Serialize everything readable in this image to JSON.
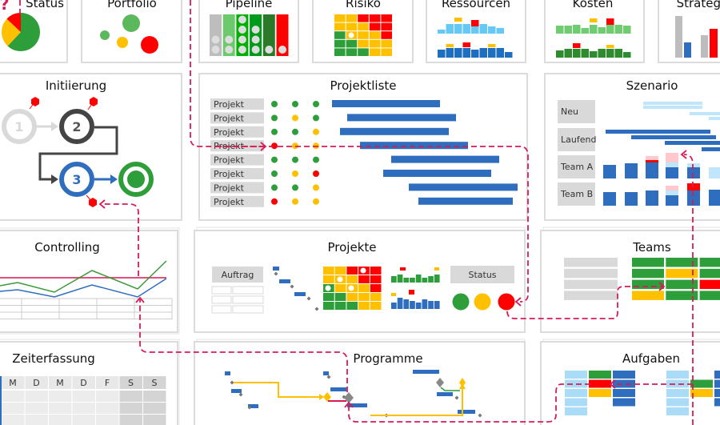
{
  "colors": {
    "green": "#2e9e3a",
    "light_green": "#6cc96c",
    "yellow": "#ffc000",
    "red": "#ff0000",
    "blue": "#2f6dbf",
    "light_blue": "#9fd8f7",
    "gray": "#d9d9d9",
    "connector": "#d81b55"
  },
  "tiles": {
    "status": {
      "title": "Status",
      "pie": [
        {
          "color": "green",
          "share": 62
        },
        {
          "color": "yellow",
          "share": 25
        },
        {
          "color": "red",
          "share": 13
        }
      ],
      "icon": "question-mark-icon"
    },
    "portfolio": {
      "title": "Portfolio"
    },
    "pipeline": {
      "title": "Pipeline"
    },
    "risiko": {
      "title": "Risiko"
    },
    "ressourcen": {
      "title": "Ressourcen"
    },
    "kosten": {
      "title": "Kosten"
    },
    "strategie": {
      "title": "Strategie"
    },
    "initiierung": {
      "title": "Initiierung",
      "steps": [
        "1",
        "2",
        "3"
      ]
    },
    "projektliste": {
      "title": "Projektliste",
      "rows": [
        {
          "label": "Projekt",
          "status": [
            "green",
            "green",
            "green"
          ]
        },
        {
          "label": "Projekt",
          "status": [
            "green",
            "yellow",
            "green"
          ]
        },
        {
          "label": "Projekt",
          "status": [
            "green",
            "green",
            "yellow"
          ]
        },
        {
          "label": "Projekt",
          "status": [
            "red",
            "yellow",
            "yellow"
          ]
        },
        {
          "label": "Projekt",
          "status": [
            "green",
            "green",
            "green"
          ]
        },
        {
          "label": "Projekt",
          "status": [
            "green",
            "yellow",
            "red"
          ]
        },
        {
          "label": "Projekt",
          "status": [
            "green",
            "green",
            "yellow"
          ]
        },
        {
          "label": "Projekt",
          "status": [
            "red",
            "yellow",
            "yellow"
          ]
        }
      ]
    },
    "szenario": {
      "title": "Szenario",
      "labels": [
        "Neu",
        "Laufend",
        "Team A",
        "Team B"
      ]
    },
    "controlling": {
      "title": "Controlling"
    },
    "projekte": {
      "title": "Projekte",
      "auftrag_label": "Auftrag",
      "status_label": "Status"
    },
    "teams": {
      "title": "Teams"
    },
    "zeiterfassung": {
      "title": "Zeiterfassung",
      "weekdays": [
        "M",
        "D",
        "M",
        "D",
        "F",
        "S",
        "S"
      ]
    },
    "programme": {
      "title": "Programme"
    },
    "aufgaben": {
      "title": "Aufgaben"
    }
  }
}
